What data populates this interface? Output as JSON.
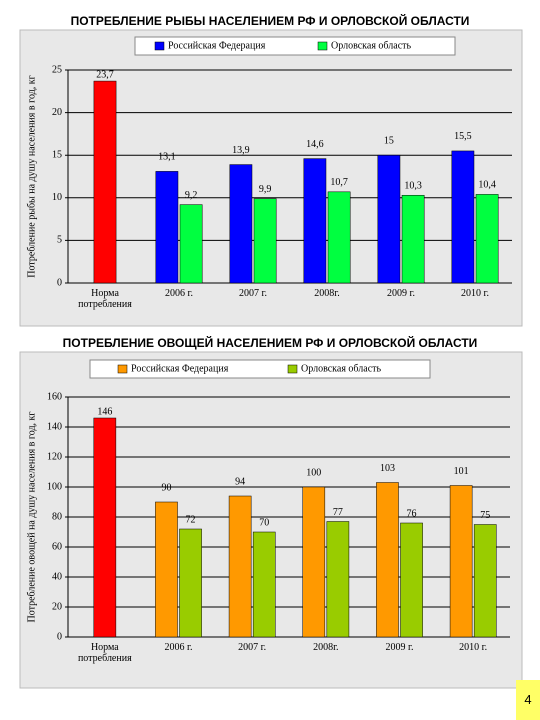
{
  "chart_data": [
    {
      "type": "bar",
      "title": "ПОТРЕБЛЕНИЕ РЫБЫ НАСЕЛЕНИЕМ РФ И ОРЛОВСКОЙ ОБЛАСТИ",
      "y_label": "Потребление рыбы на душу населения в год, кг",
      "categories": [
        "Норма потребления",
        "2006 г.",
        "2007 г.",
        "2008г.",
        "2009 г.",
        "2010 г."
      ],
      "norm": {
        "value": 23.7,
        "value_label": "23,7",
        "color": "#ff0000"
      },
      "series": [
        {
          "name": "Российская Федерация",
          "color": "#0000ff",
          "values": [
            null,
            13.1,
            13.9,
            14.6,
            15,
            15.5
          ],
          "value_labels": [
            null,
            "13,1",
            "13,9",
            "14,6",
            "15",
            "15,5"
          ]
        },
        {
          "name": "Орловская область",
          "color": "#00ff40",
          "values": [
            null,
            9.2,
            9.9,
            10.7,
            10.3,
            10.4
          ],
          "value_labels": [
            null,
            "9,2",
            "9,9",
            "10,7",
            "10,3",
            "10,4"
          ]
        }
      ],
      "ylim": [
        0,
        25
      ],
      "yticks": [
        0,
        5,
        10,
        15,
        20,
        25
      ],
      "grid": true
    },
    {
      "type": "bar",
      "title": "ПОТРЕБЛЕНИЕ ОВОЩЕЙ НАСЕЛЕНИЕМ РФ И ОРЛОВСКОЙ ОБЛАСТИ",
      "y_label": "Потребление овощей на душу населения в год, кг",
      "categories": [
        "Норма потребления",
        "2006 г.",
        "2007 г.",
        "2008г.",
        "2009 г.",
        "2010 г."
      ],
      "norm": {
        "value": 146,
        "color": "#ff0000"
      },
      "series": [
        {
          "name": "Российская Федерация",
          "color": "#ff9900",
          "values": [
            null,
            90,
            94,
            100,
            103,
            101
          ]
        },
        {
          "name": "Орловская область",
          "color": "#99cc00",
          "values": [
            null,
            72,
            70,
            77,
            76,
            75
          ]
        }
      ],
      "ylim": [
        0,
        160
      ],
      "yticks": [
        0,
        20,
        40,
        60,
        80,
        100,
        120,
        140,
        160
      ],
      "grid": true
    }
  ],
  "page_number": "4"
}
